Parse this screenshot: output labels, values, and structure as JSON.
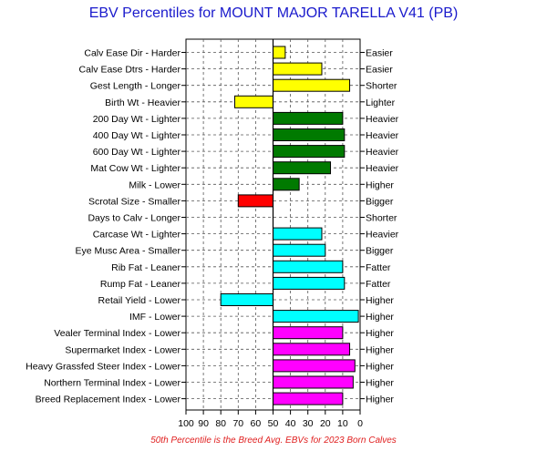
{
  "chart_data": {
    "type": "bar",
    "title": "EBV Percentiles for MOUNT MAJOR TARELLA V41 (PB)",
    "footnote": "50th Percentile is the Breed Avg. EBVs for 2023 Born Calves",
    "x_ticks": [
      "100",
      "90",
      "80",
      "70",
      "60",
      "50",
      "40",
      "30",
      "20",
      "10",
      "0"
    ],
    "xlim": [
      100,
      0
    ],
    "baseline": 50,
    "grid": true,
    "colors": {
      "yellow": "#ffff00",
      "green": "#007a00",
      "red": "#ff0000",
      "cyan": "#00ffff",
      "magenta": "#ff00ff",
      "title": "#1a1acc",
      "footnote": "#e02020"
    },
    "traits": [
      {
        "left_label": "Calv Ease Dir - Harder",
        "right_label": "Easier",
        "percentile": 43,
        "color": "yellow"
      },
      {
        "left_label": "Calv Ease Dtrs - Harder",
        "right_label": "Easier",
        "percentile": 22,
        "color": "yellow"
      },
      {
        "left_label": "Gest Length - Longer",
        "right_label": "Shorter",
        "percentile": 6,
        "color": "yellow"
      },
      {
        "left_label": "Birth Wt - Heavier",
        "right_label": "Lighter",
        "percentile": 72,
        "color": "yellow"
      },
      {
        "left_label": "200 Day Wt - Lighter",
        "right_label": "Heavier",
        "percentile": 10,
        "color": "green"
      },
      {
        "left_label": "400 Day Wt - Lighter",
        "right_label": "Heavier",
        "percentile": 9,
        "color": "green"
      },
      {
        "left_label": "600 Day Wt - Lighter",
        "right_label": "Heavier",
        "percentile": 9,
        "color": "green"
      },
      {
        "left_label": "Mat Cow Wt - Lighter",
        "right_label": "Heavier",
        "percentile": 17,
        "color": "green"
      },
      {
        "left_label": "Milk - Lower",
        "right_label": "Higher",
        "percentile": 35,
        "color": "green"
      },
      {
        "left_label": "Scrotal Size - Smaller",
        "right_label": "Bigger",
        "percentile": 70,
        "color": "red"
      },
      {
        "left_label": "Days to Calv - Longer",
        "right_label": "Shorter",
        "percentile": null,
        "color": "none"
      },
      {
        "left_label": "Carcase Wt - Lighter",
        "right_label": "Heavier",
        "percentile": 22,
        "color": "cyan"
      },
      {
        "left_label": "Eye Musc Area - Smaller",
        "right_label": "Bigger",
        "percentile": 20,
        "color": "cyan"
      },
      {
        "left_label": "Rib Fat - Leaner",
        "right_label": "Fatter",
        "percentile": 10,
        "color": "cyan"
      },
      {
        "left_label": "Rump Fat - Leaner",
        "right_label": "Fatter",
        "percentile": 9,
        "color": "cyan"
      },
      {
        "left_label": "Retail Yield - Lower",
        "right_label": "Higher",
        "percentile": 80,
        "color": "cyan"
      },
      {
        "left_label": "IMF - Lower",
        "right_label": "Higher",
        "percentile": 1,
        "color": "cyan"
      },
      {
        "left_label": "Vealer Terminal Index - Lower",
        "right_label": "Higher",
        "percentile": 10,
        "color": "magenta"
      },
      {
        "left_label": "Supermarket Index - Lower",
        "right_label": "Higher",
        "percentile": 6,
        "color": "magenta"
      },
      {
        "left_label": "Heavy Grassfed Steer Index - Lower",
        "right_label": "Higher",
        "percentile": 3,
        "color": "magenta"
      },
      {
        "left_label": "Northern Terminal Index - Lower",
        "right_label": "Higher",
        "percentile": 4,
        "color": "magenta"
      },
      {
        "left_label": "Breed Replacement Index - Lower",
        "right_label": "Higher",
        "percentile": 10,
        "color": "magenta"
      }
    ]
  }
}
